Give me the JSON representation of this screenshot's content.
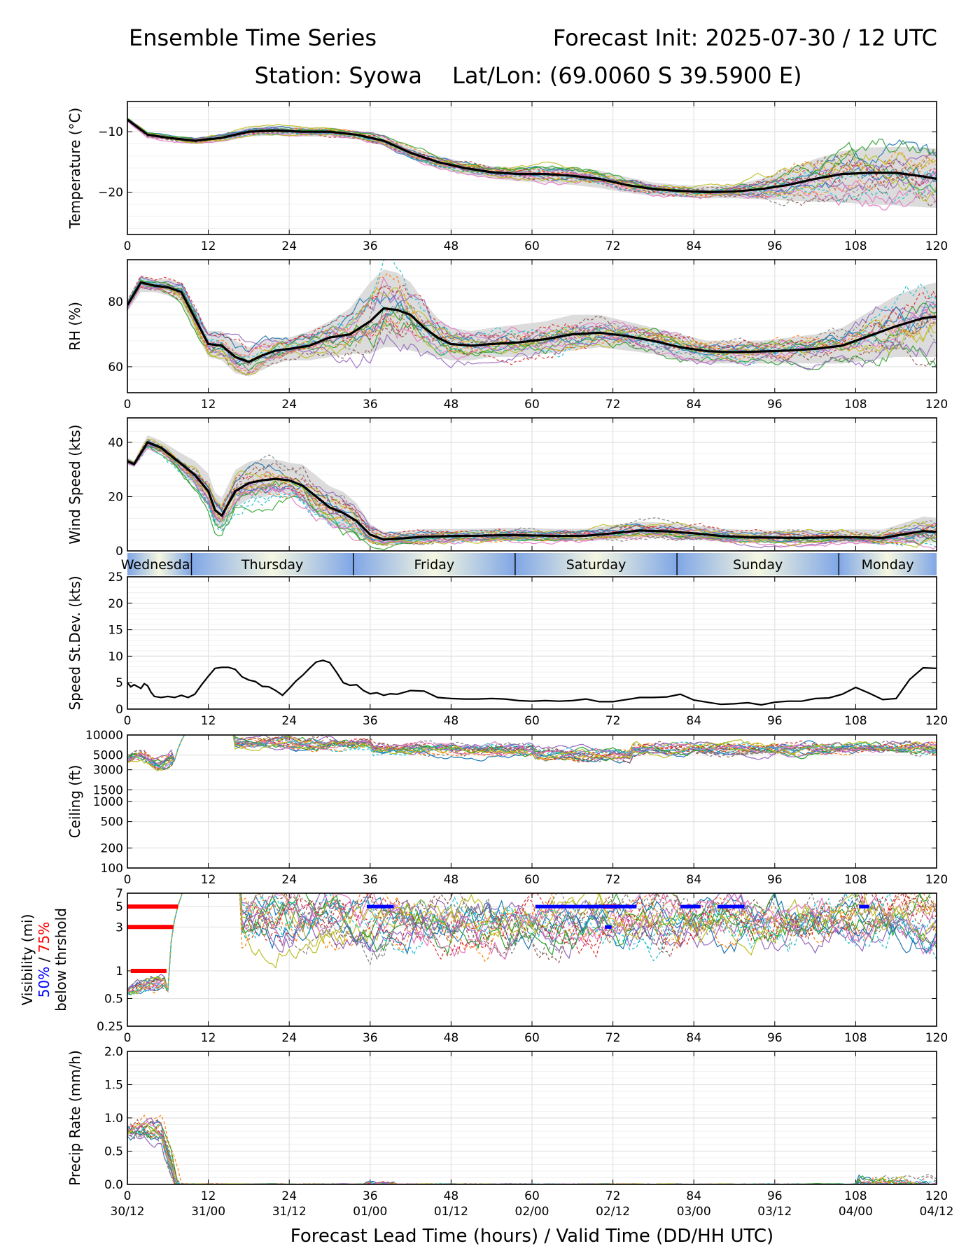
{
  "header": {
    "title_left": "Ensemble Time Series",
    "title_right": "Forecast Init: 2025-07-30 / 12 UTC",
    "station": "Station: Syowa",
    "latlon": "Lat/Lon: (69.0060 S 39.5900 E)"
  },
  "xaxis": {
    "label": "Forecast Lead Time (hours) / Valid Time (DD/HH UTC)",
    "lead_ticks": [
      "0",
      "12",
      "24",
      "36",
      "48",
      "60",
      "72",
      "84",
      "96",
      "108",
      "120"
    ],
    "valid_ticks": [
      "30/12",
      "31/00",
      "31/12",
      "01/00",
      "01/12",
      "02/00",
      "02/12",
      "03/00",
      "03/12",
      "04/00",
      "04/12"
    ]
  },
  "day_band": {
    "days": [
      {
        "label": "Wednesday",
        "start": 0,
        "end": 9.5
      },
      {
        "label": "Thursday",
        "start": 9.5,
        "end": 33.5
      },
      {
        "label": "Friday",
        "start": 33.5,
        "end": 57.5
      },
      {
        "label": "Saturday",
        "start": 57.5,
        "end": 81.5
      },
      {
        "label": "Sunday",
        "start": 81.5,
        "end": 105.5
      },
      {
        "label": "Monday",
        "start": 105.5,
        "end": 120
      }
    ],
    "colors": {
      "edge": "#7fa6e6",
      "center": "#f5f7e0"
    }
  },
  "member_colors": [
    "#1f77b4",
    "#ff7f0e",
    "#2ca02c",
    "#d62728",
    "#9467bd",
    "#8c564b",
    "#e377c2",
    "#7f7f7f",
    "#bcbd22",
    "#17becf"
  ],
  "chart_data": [
    {
      "id": "temperature",
      "type": "line",
      "ylabel": "Temperature (°C)",
      "xlim": [
        0,
        120
      ],
      "ylim": [
        -27,
        -5
      ],
      "yticks": [
        "−10",
        "−20"
      ],
      "yticks_values": [
        -10,
        -20
      ],
      "mean": {
        "x": [
          0,
          3,
          6,
          10,
          14,
          18,
          22,
          26,
          30,
          34,
          38,
          42,
          46,
          50,
          54,
          58,
          62,
          66,
          70,
          74,
          78,
          82,
          86,
          90,
          94,
          98,
          102,
          106,
          110,
          114,
          118,
          120
        ],
        "y": [
          -8,
          -10.5,
          -11,
          -11.5,
          -11,
          -10,
          -9.8,
          -10,
          -10,
          -10.5,
          -11.5,
          -13.5,
          -15,
          -16,
          -16.7,
          -17,
          -17,
          -17.3,
          -17.8,
          -18.8,
          -19.5,
          -19.8,
          -20,
          -19.9,
          -19.5,
          -18.8,
          -17.8,
          -17,
          -16.8,
          -16.8,
          -17.4,
          -17.8
        ]
      },
      "spread_lo": [
        -8,
        -10.7,
        -11.3,
        -12,
        -11.7,
        -10.8,
        -10.6,
        -10.8,
        -10.8,
        -11.2,
        -12.3,
        -14.4,
        -16,
        -17,
        -17.7,
        -18.2,
        -18.4,
        -18.8,
        -19.3,
        -20.1,
        -20.6,
        -20.8,
        -21,
        -21,
        -21.2,
        -21.4,
        -21.6,
        -21.7,
        -22,
        -22.2,
        -22.5,
        -22.6
      ],
      "spread_hi": [
        -8,
        -10.3,
        -10.7,
        -11,
        -10.4,
        -9.3,
        -9,
        -9.2,
        -9.3,
        -9.8,
        -10.7,
        -12.6,
        -14,
        -15,
        -15.7,
        -15.9,
        -15.8,
        -16,
        -16.4,
        -17.5,
        -18.4,
        -18.8,
        -19,
        -18.8,
        -17.8,
        -16.2,
        -14.5,
        -13.2,
        -12.6,
        -12.5,
        -12.6,
        -12.8
      ]
    },
    {
      "id": "rh",
      "type": "line",
      "ylabel": "RH (%)",
      "xlim": [
        0,
        120
      ],
      "ylim": [
        52,
        93
      ],
      "yticks": [
        "80",
        "60"
      ],
      "yticks_values": [
        80,
        60
      ],
      "mean": {
        "x": [
          0,
          2,
          4,
          6,
          8,
          10,
          12,
          14,
          16,
          18,
          20,
          22,
          24,
          27,
          30,
          33,
          36,
          38,
          40,
          42,
          44,
          46,
          48,
          51,
          54,
          58,
          62,
          66,
          70,
          74,
          78,
          82,
          86,
          90,
          94,
          98,
          102,
          106,
          110,
          114,
          118,
          120
        ],
        "y": [
          79,
          86,
          85,
          84.5,
          83,
          75,
          67,
          66.5,
          63,
          61.5,
          63.5,
          65,
          65.5,
          66.5,
          69,
          70,
          74,
          78,
          77.5,
          76,
          72,
          69,
          67,
          66.5,
          67,
          67.5,
          68.5,
          70,
          70.5,
          69.5,
          68,
          66,
          64.8,
          64.5,
          64.7,
          65,
          65.5,
          66.5,
          69.5,
          72.5,
          75,
          75.5
        ]
      },
      "spread_lo": [
        77,
        83,
        83,
        82,
        80,
        71,
        63,
        62,
        58,
        57,
        59,
        61,
        62,
        62,
        63,
        64,
        64,
        66,
        66,
        65,
        64,
        63,
        62,
        62,
        63,
        63,
        64,
        65,
        66,
        65,
        64,
        62,
        61,
        61,
        61,
        61,
        61,
        61,
        62,
        63,
        63,
        63
      ],
      "spread_hi": [
        81,
        88,
        87,
        87,
        86,
        78,
        71,
        71,
        68,
        66,
        68,
        69,
        69,
        71,
        74,
        78,
        86,
        90,
        89,
        86,
        80,
        75,
        72,
        71,
        72,
        73,
        74,
        76,
        76,
        74,
        72,
        70,
        68,
        68,
        68,
        69,
        70,
        72,
        77,
        82,
        85,
        86
      ]
    },
    {
      "id": "wind_speed",
      "type": "line",
      "ylabel": "Wind Speed (kts)",
      "xlim": [
        0,
        120
      ],
      "ylim": [
        0,
        49
      ],
      "yticks": [
        "40",
        "20",
        "0"
      ],
      "yticks_values": [
        40,
        20,
        0
      ],
      "mean": {
        "x": [
          0,
          1,
          3,
          5,
          8,
          10,
          12,
          13,
          14,
          16,
          18,
          20,
          22,
          24,
          26,
          28,
          30,
          32,
          34,
          36,
          38,
          40,
          44,
          48,
          52,
          56,
          60,
          64,
          68,
          72,
          76,
          80,
          84,
          88,
          92,
          96,
          100,
          104,
          108,
          112,
          116,
          118,
          120
        ],
        "y": [
          33,
          32,
          40,
          38,
          32,
          28,
          22,
          15,
          13,
          22,
          25,
          26,
          26.5,
          26,
          24,
          20,
          16,
          14,
          11,
          6,
          4.2,
          4.5,
          5.2,
          5.5,
          5.6,
          5.8,
          5.7,
          5.5,
          5.6,
          6.5,
          7.5,
          7.2,
          6.5,
          5.5,
          5,
          4.9,
          4.8,
          5,
          5,
          4.8,
          6.5,
          7.3,
          7
        ]
      },
      "spread_lo": [
        32,
        31,
        38,
        36,
        29,
        24,
        17,
        10,
        8,
        16,
        19,
        20,
        21,
        21,
        18,
        14,
        10,
        8,
        6,
        3,
        2,
        2.5,
        3,
        3.5,
        3.6,
        3.7,
        3.6,
        3.5,
        3.6,
        4.2,
        5,
        4.8,
        4.2,
        3.4,
        3,
        2.9,
        2.8,
        2.9,
        2.8,
        2.5,
        3,
        3.2,
        3
      ]
    },
    {
      "id": "speed_stdev",
      "type": "line",
      "ylabel": "Speed St.Dev. (kts)",
      "xlim": [
        0,
        120
      ],
      "ylim": [
        0,
        25
      ],
      "yticks": [
        "25",
        "20",
        "15",
        "10",
        "5",
        "0"
      ],
      "yticks_values": [
        25,
        20,
        15,
        10,
        5,
        0
      ],
      "values": {
        "x": [
          0,
          0.5,
          1,
          2,
          2.5,
          3,
          3.5,
          4,
          5,
          6,
          7,
          8,
          9,
          10,
          11,
          12,
          13,
          14,
          15,
          16,
          17,
          18,
          19,
          20,
          21,
          22,
          23,
          24,
          25,
          26,
          27,
          28,
          29,
          30,
          31,
          32,
          33,
          34,
          35,
          36,
          37,
          38,
          39,
          40,
          42,
          44,
          46,
          48,
          50,
          52,
          54,
          56,
          58,
          60,
          62,
          64,
          66,
          68,
          70,
          72,
          74,
          76,
          78,
          80,
          82,
          84,
          86,
          88,
          90,
          92,
          94,
          96,
          98,
          100,
          102,
          104,
          106,
          108,
          110,
          112,
          114,
          116,
          118,
          120
        ],
        "y": [
          5.0,
          4.2,
          4.6,
          3.9,
          4.8,
          4.4,
          3.2,
          2.4,
          2.2,
          2.4,
          2.2,
          2.6,
          2.2,
          2.8,
          4.6,
          6.2,
          7.7,
          7.9,
          7.9,
          7.5,
          6.1,
          5.5,
          5.2,
          4.3,
          4.2,
          3.5,
          2.6,
          3.9,
          5.3,
          6.4,
          7.7,
          8.9,
          9.2,
          8.8,
          7.0,
          5.0,
          4.5,
          4.6,
          3.5,
          2.9,
          3.1,
          2.6,
          2.9,
          2.8,
          3.5,
          3.4,
          2.2,
          2.0,
          1.9,
          1.9,
          2.0,
          1.9,
          1.6,
          1.5,
          1.6,
          1.5,
          1.6,
          1.9,
          1.4,
          1.4,
          1.8,
          2.2,
          2.2,
          2.3,
          2.8,
          1.7,
          1.3,
          0.9,
          1.0,
          1.2,
          0.8,
          1.3,
          1.5,
          1.5,
          2.0,
          2.1,
          2.8,
          4.1,
          3.0,
          1.8,
          2.0,
          5.6,
          7.8,
          7.7
        ]
      }
    },
    {
      "id": "ceiling",
      "type": "line",
      "ylabel": "Ceiling (ft)",
      "xlim": [
        0,
        120
      ],
      "ylim": [
        100,
        10000
      ],
      "scale": "log",
      "yticks": [
        "10000",
        "5000",
        "3000",
        "1500",
        "1000",
        "500",
        "200",
        "100"
      ],
      "yticks_values": [
        10000,
        5000,
        3000,
        1500,
        1000,
        500,
        200,
        100
      ]
    },
    {
      "id": "visibility",
      "type": "line",
      "ylabel": "Visibility (mi)",
      "ylabel2": [
        "50%",
        " / ",
        "75%"
      ],
      "ylabel3": "below thrshold",
      "xlim": [
        0,
        120
      ],
      "ylim": [
        0.25,
        7
      ],
      "scale": "log",
      "yticks": [
        "7",
        "5",
        "3",
        "1",
        "0.5",
        "0.25"
      ],
      "yticks_values": [
        7,
        5,
        3,
        1,
        0.5,
        0.25
      ],
      "threshold_50_color": "#0000ff",
      "threshold_75_color": "#ff0000",
      "segments_75": [
        {
          "y": 5,
          "x": [
            0,
            7.5
          ]
        },
        {
          "y": 3,
          "x": [
            0,
            6.8
          ]
        },
        {
          "y": 1,
          "x": [
            0.5,
            5.8
          ]
        },
        {
          "y": 5,
          "x": [
            70.5,
            72.5
          ]
        }
      ],
      "segments_50": [
        {
          "y": 5,
          "x": [
            35.5,
            39.5
          ]
        },
        {
          "y": 5,
          "x": [
            60.5,
            75.5
          ]
        },
        {
          "y": 3,
          "x": [
            70.8,
            71.8
          ]
        },
        {
          "y": 5,
          "x": [
            82,
            85
          ]
        },
        {
          "y": 5,
          "x": [
            87.5,
            91.5
          ]
        },
        {
          "y": 5,
          "x": [
            108.5,
            110
          ]
        }
      ]
    },
    {
      "id": "precip_rate",
      "type": "line",
      "ylabel": "Precip Rate (mm/h)",
      "xlim": [
        0,
        120
      ],
      "ylim": [
        0,
        2
      ],
      "yticks": [
        "2.0",
        "1.5",
        "1.0",
        "0.5",
        "0.0"
      ],
      "yticks_values": [
        2,
        1.5,
        1,
        0.5,
        0
      ]
    }
  ]
}
